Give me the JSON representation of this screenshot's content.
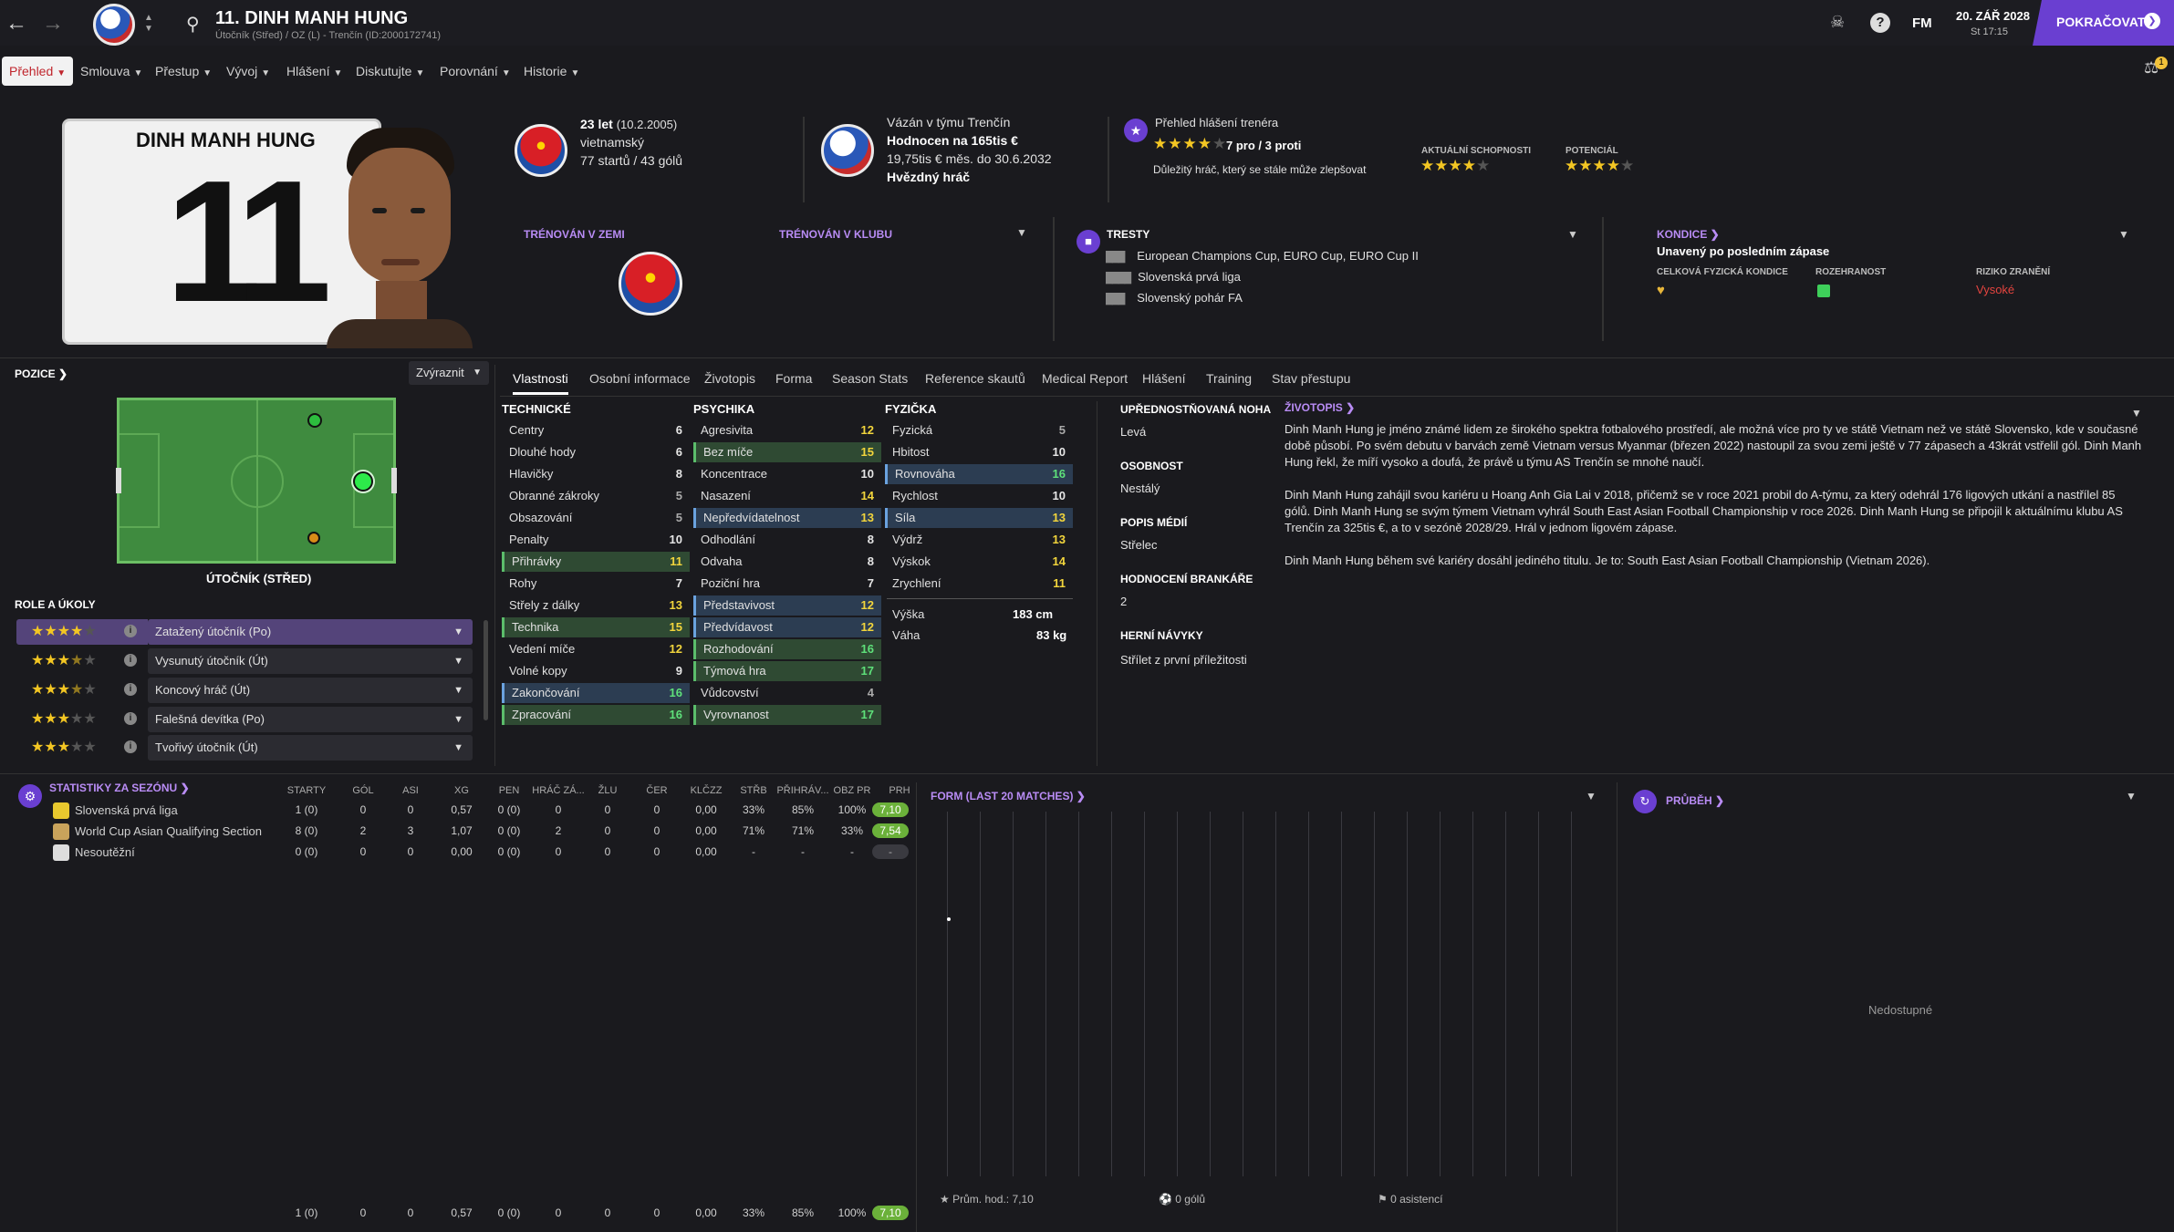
{
  "header": {
    "title": "11. DINH MANH HUNG",
    "subtitle": "Útočník (Střed) / OZ (L) - Trenčín (ID:2000172741)",
    "date": "20. ZÁŘ 2028",
    "time": "St 17:15",
    "continue_label": "POKRAČOVAT",
    "fm_label": "FM",
    "notif_count": "1"
  },
  "nav": {
    "items": [
      "Přehled",
      "Smlouva",
      "Přestup",
      "Vývoj",
      "Hlášení",
      "Diskutujte",
      "Porovnání",
      "Historie"
    ]
  },
  "profile": {
    "shirt_name": "DINH MANH HUNG",
    "shirt_number": "11",
    "age": "23 let",
    "dob": "(10.2.2005)",
    "nationality": "vietnamský",
    "caps": "77 startů / 43 gólů",
    "contract_team": "Vázán v týmu Trenčín",
    "value": "Hodnocen na 165tis €",
    "wage": "19,75tis € měs. do 30.6.2032",
    "status": "Hvězdný hráč",
    "coach_report_title": "Přehled hlášení trenéra",
    "coach_votes": "7 pro / 3 proti",
    "coach_note": "Důležitý hráč, který se stále může zlepšovat",
    "current_ability_label": "AKTUÁLNÍ SCHOPNOSTI",
    "potential_label": "POTENCIÁL",
    "trained_country_label": "TRÉNOVÁN V ZEMI",
    "trained_club_label": "TRÉNOVÁN V KLUBU"
  },
  "bans": {
    "title": "TRESTY",
    "items": [
      "European Champions Cup, EURO Cup, EURO Cup II",
      "Slovenská prvá liga",
      "Slovenský pohár FA"
    ]
  },
  "condition": {
    "title": "KONDICE",
    "status": "Unavený po posledním zápase",
    "fitness_label": "CELKOVÁ FYZICKÁ KONDICE",
    "sharpness_label": "ROZEHRANOST",
    "injury_label": "RIZIKO ZRANĚNÍ",
    "injury_value": "Vysoké"
  },
  "position": {
    "title": "POZICE",
    "highlight_label": "Zvýraznit",
    "position_name": "ÚTOČNÍK (STŘED)",
    "roles_title": "ROLE A ÚKOLY",
    "roles": [
      {
        "name": "Zatažený útočník (Po)",
        "stars": 4
      },
      {
        "name": "Vysunutý útočník (Út)",
        "stars": 3.5
      },
      {
        "name": "Koncový hráč (Út)",
        "stars": 3.5
      },
      {
        "name": "Falešná devítka (Po)",
        "stars": 3
      },
      {
        "name": "Tvořivý útočník (Út)",
        "stars": 3
      }
    ]
  },
  "tabs": [
    "Vlastnosti",
    "Osobní informace",
    "Životopis",
    "Forma",
    "Season Stats",
    "Reference skautů",
    "Medical Report",
    "Hlášení",
    "Training",
    "Stav přestupu"
  ],
  "attributes": {
    "technical_title": "TECHNICKÉ",
    "mental_title": "PSYCHIKA",
    "physical_title": "FYZIČKA",
    "technical": [
      {
        "name": "Centry",
        "value": "6",
        "c": "w",
        "h": ""
      },
      {
        "name": "Dlouhé hody",
        "value": "6",
        "c": "w",
        "h": ""
      },
      {
        "name": "Hlavičky",
        "value": "8",
        "c": "w",
        "h": ""
      },
      {
        "name": "Obranné zákroky",
        "value": "5",
        "c": "gr",
        "h": ""
      },
      {
        "name": "Obsazování",
        "value": "5",
        "c": "gr",
        "h": ""
      },
      {
        "name": "Penalty",
        "value": "10",
        "c": "w",
        "h": ""
      },
      {
        "name": "Přihrávky",
        "value": "11",
        "c": "y",
        "h": "green"
      },
      {
        "name": "Rohy",
        "value": "7",
        "c": "w",
        "h": ""
      },
      {
        "name": "Střely z dálky",
        "value": "13",
        "c": "y",
        "h": ""
      },
      {
        "name": "Technika",
        "value": "15",
        "c": "y",
        "h": "green"
      },
      {
        "name": "Vedení míče",
        "value": "12",
        "c": "y",
        "h": ""
      },
      {
        "name": "Volné kopy",
        "value": "9",
        "c": "w",
        "h": ""
      },
      {
        "name": "Zakončování",
        "value": "16",
        "c": "g",
        "h": "blue"
      },
      {
        "name": "Zpracování",
        "value": "16",
        "c": "g",
        "h": "green"
      }
    ],
    "mental": [
      {
        "name": "Agresivita",
        "value": "12",
        "c": "y",
        "h": ""
      },
      {
        "name": "Bez míče",
        "value": "15",
        "c": "y",
        "h": "green"
      },
      {
        "name": "Koncentrace",
        "value": "10",
        "c": "w",
        "h": ""
      },
      {
        "name": "Nasazení",
        "value": "14",
        "c": "y",
        "h": ""
      },
      {
        "name": "Nepředvídatelnost",
        "value": "13",
        "c": "y",
        "h": "blue"
      },
      {
        "name": "Odhodlání",
        "value": "8",
        "c": "w",
        "h": ""
      },
      {
        "name": "Odvaha",
        "value": "8",
        "c": "w",
        "h": ""
      },
      {
        "name": "Poziční hra",
        "value": "7",
        "c": "w",
        "h": ""
      },
      {
        "name": "Představivost",
        "value": "12",
        "c": "y",
        "h": "blue"
      },
      {
        "name": "Předvídavost",
        "value": "12",
        "c": "y",
        "h": "blue"
      },
      {
        "name": "Rozhodování",
        "value": "16",
        "c": "g",
        "h": "green"
      },
      {
        "name": "Týmová hra",
        "value": "17",
        "c": "g",
        "h": "green"
      },
      {
        "name": "Vůdcovství",
        "value": "4",
        "c": "gr",
        "h": ""
      },
      {
        "name": "Vyrovnanost",
        "value": "17",
        "c": "g",
        "h": "green"
      }
    ],
    "physical": [
      {
        "name": "Fyzická",
        "value": "5",
        "c": "gr",
        "h": ""
      },
      {
        "name": "Hbitost",
        "value": "10",
        "c": "w",
        "h": ""
      },
      {
        "name": "Rovnováha",
        "value": "16",
        "c": "g",
        "h": "blue"
      },
      {
        "name": "Rychlost",
        "value": "10",
        "c": "w",
        "h": ""
      },
      {
        "name": "Síla",
        "value": "13",
        "c": "y",
        "h": "blue"
      },
      {
        "name": "Výdrž",
        "value": "13",
        "c": "y",
        "h": ""
      },
      {
        "name": "Výskok",
        "value": "14",
        "c": "y",
        "h": ""
      },
      {
        "name": "Zrychlení",
        "value": "11",
        "c": "y",
        "h": ""
      }
    ],
    "height_label": "Výška",
    "height": "183 cm",
    "weight_label": "Váha",
    "weight": "83 kg"
  },
  "info": {
    "foot_label": "UPŘEDNOSTŇOVANÁ NOHA",
    "foot": "Levá",
    "personality_label": "OSOBNOST",
    "personality": "Nestálý",
    "media_label": "POPIS MÉDIÍ",
    "media": "Střelec",
    "gk_label": "HODNOCENÍ BRANKÁŘE",
    "gk": "2",
    "habits_label": "HERNÍ NÁVYKY",
    "habits": "Střílet z první příležitosti"
  },
  "bio": {
    "title": "ŽIVOTOPIS",
    "p1": "Dinh Manh Hung je jméno známé lidem ze širokého spektra fotbalového prostředí, ale možná více pro ty ve státě Vietnam než ve státě Slovensko, kde v současné době působí. Po svém debutu v barvách země Vietnam versus Myanmar (březen 2022) nastoupil za svou zemi ještě v 77 zápasech a 43krát vstřelil gól. Dinh Manh Hung řekl, že míří vysoko a doufá, že právě u týmu AS Trenčín se mnohé naučí.",
    "p2": "Dinh Manh Hung zahájil svou kariéru u Hoang Anh Gia Lai v 2018, přičemž se v roce 2021 probil do A-týmu, za který odehrál 176 ligových utkání a nastřílel 85 gólů. Dinh Manh Hung se svým týmem Vietnam vyhrál South East Asian Football Championship v roce 2026. Dinh Manh Hung se připojil k aktuálnímu klubu AS Trenčín za 325tis €, a to v sezóně 2028/29. Hrál v jednom ligovém zápase.",
    "p3": "Dinh Manh Hung během své kariéry dosáhl jediného titulu. Je to: South East Asian Football Championship (Vietnam 2026)."
  },
  "season": {
    "title": "STATISTIKY ZA SEZÓNU",
    "headers": [
      "STARTY",
      "GÓL",
      "ASI",
      "XG",
      "PEN",
      "HRÁČ ZÁ...",
      "ŽLU",
      "ČER",
      "KLČZZ",
      "STŘB",
      "PŘIHRÁV...",
      "OBZ PR",
      "PRH"
    ],
    "rows": [
      {
        "comp": "Slovenská prvá liga",
        "vals": [
          "1 (0)",
          "0",
          "0",
          "0,57",
          "0 (0)",
          "0",
          "0",
          "0",
          "0,00",
          "33%",
          "85%",
          "100%"
        ],
        "rating": "7,10"
      },
      {
        "comp": "World Cup Asian Qualifying Section",
        "vals": [
          "8 (0)",
          "2",
          "3",
          "1,07",
          "0 (0)",
          "2",
          "0",
          "0",
          "0,00",
          "71%",
          "71%",
          "33%"
        ],
        "rating": "7,54"
      },
      {
        "comp": "Nesoutěžní",
        "vals": [
          "0 (0)",
          "0",
          "0",
          "0,00",
          "0 (0)",
          "0",
          "0",
          "0",
          "0,00",
          "-",
          "-",
          "-"
        ],
        "rating": "-"
      }
    ],
    "totals": [
      "1 (0)",
      "0",
      "0",
      "0,57",
      "0 (0)",
      "0",
      "0",
      "0",
      "0,00",
      "33%",
      "85%",
      "100%"
    ],
    "total_rating": "7,10"
  },
  "form": {
    "title": "FORM (LAST 20 MATCHES)",
    "avg": "Prům. hod.: 7,10",
    "goals": "0 gólů",
    "assists": "0 asistencí"
  },
  "progress": {
    "title": "PRŮBĚH",
    "unavailable": "Nedostupné"
  },
  "colors": {
    "accent": "#6a3fd1",
    "brand_red": "#c0262d"
  }
}
